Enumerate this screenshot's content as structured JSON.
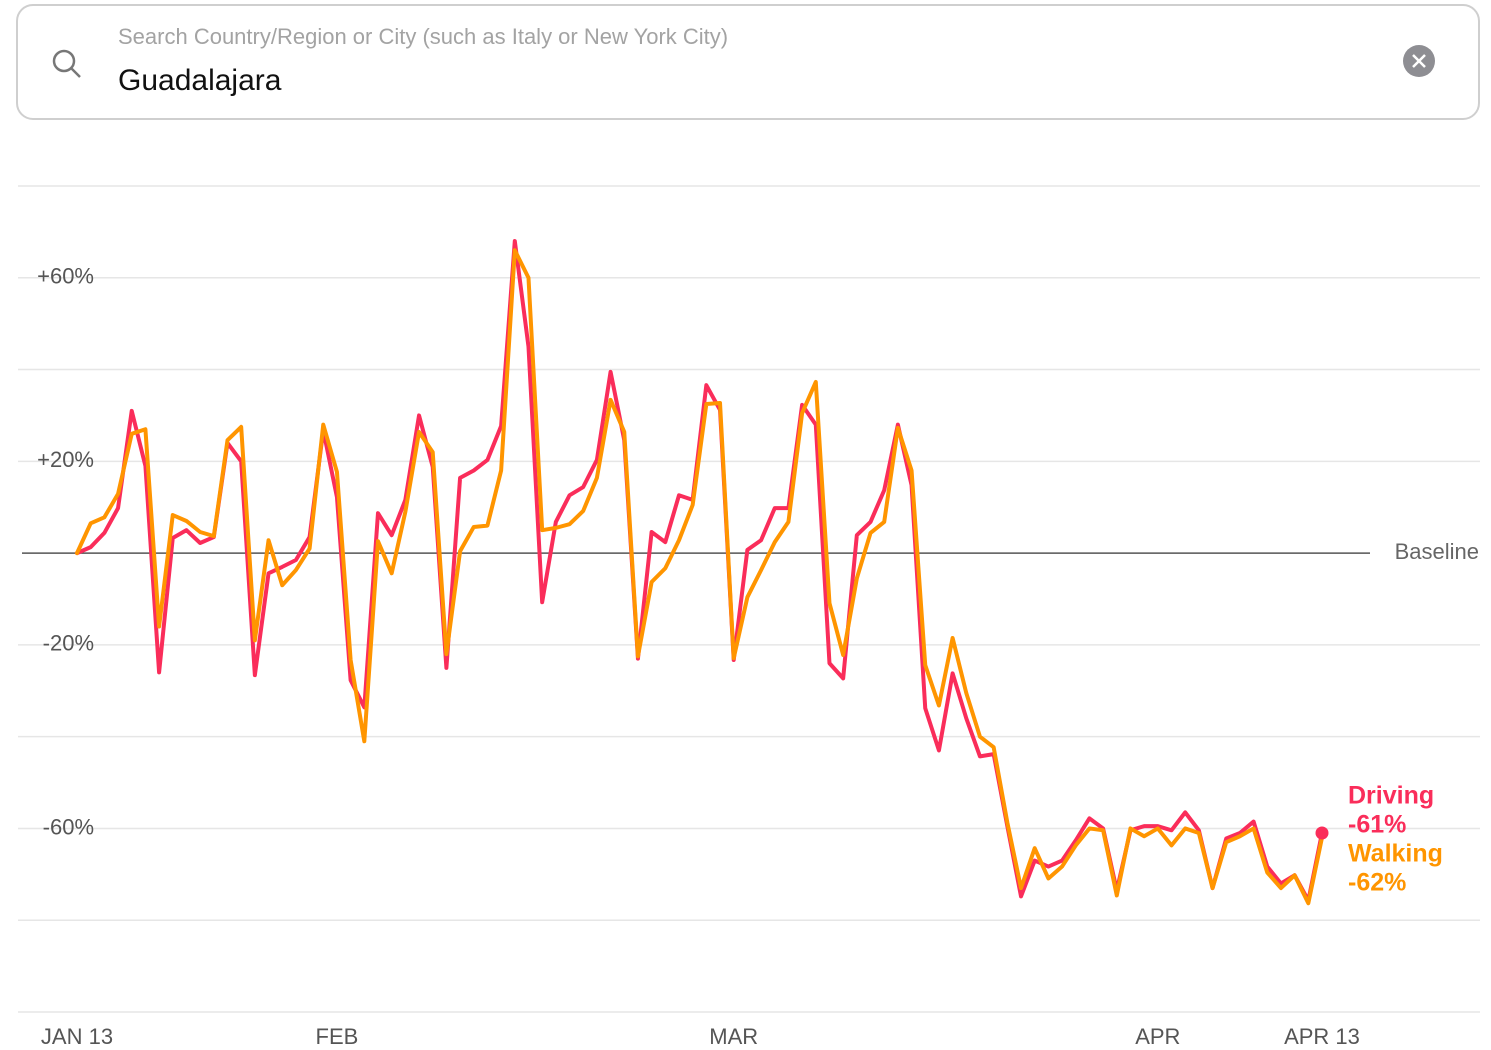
{
  "search": {
    "placeholder": "Search Country/Region or City (such as Italy or New York City)",
    "value": "Guadalajara"
  },
  "chart_data": {
    "type": "line",
    "x": [
      0,
      1,
      2,
      3,
      4,
      5,
      6,
      7,
      8,
      9,
      10,
      11,
      12,
      13,
      14,
      15,
      16,
      17,
      18,
      19,
      20,
      21,
      22,
      23,
      24,
      25,
      26,
      27,
      28,
      29,
      30,
      31,
      32,
      33,
      34,
      35,
      36,
      37,
      38,
      39,
      40,
      41,
      42,
      43,
      44,
      45,
      46,
      47,
      48,
      49,
      50,
      51,
      52,
      53,
      54,
      55,
      56,
      57,
      58,
      59,
      60,
      61,
      62,
      63,
      64,
      65,
      66,
      67,
      68,
      69,
      70,
      71,
      72,
      73,
      74,
      75,
      76,
      77,
      78,
      79,
      80,
      81,
      82,
      83,
      84,
      85,
      86,
      87,
      88,
      89,
      90,
      91
    ],
    "xlim": [
      0,
      91
    ],
    "xticks": [
      {
        "value": 0,
        "label": "JAN 13"
      },
      {
        "value": 19,
        "label": "FEB"
      },
      {
        "value": 48,
        "label": "MAR"
      },
      {
        "value": 79,
        "label": "APR"
      },
      {
        "value": 91,
        "label": "APR 13"
      }
    ],
    "ylim": [
      -100,
      80
    ],
    "yticks": [
      {
        "value": 60,
        "label": "+60%"
      },
      {
        "value": 20,
        "label": "+20%"
      },
      {
        "value": -20,
        "label": "-20%"
      },
      {
        "value": -60,
        "label": "-60%"
      }
    ],
    "minor_yticks": [
      80,
      40,
      -40,
      -80,
      -100
    ],
    "baseline": {
      "value": 0,
      "label": "Baseline"
    },
    "grid": true,
    "series": [
      {
        "name": "Driving",
        "color": "#fa2d5a",
        "values": [
          0,
          1.3,
          4.4,
          9.8,
          31,
          19,
          -26,
          3.3,
          5,
          2.2,
          3.5,
          24,
          20,
          -26.6,
          -4.4,
          -3,
          -1.5,
          3.5,
          26.8,
          12.2,
          -27.7,
          -33.6,
          8.7,
          3.9,
          11.6,
          30,
          18.8,
          -25,
          16.4,
          18,
          20.3,
          27.7,
          68,
          45,
          -10.7,
          6.8,
          12.6,
          14.4,
          20.3,
          39.5,
          24.6,
          -23,
          4.6,
          2.4,
          12.6,
          11.6,
          36.6,
          31.2,
          -23.3,
          0.7,
          2.8,
          9.8,
          9.8,
          32.3,
          28,
          -24,
          -27.3,
          3.9,
          6.8,
          13.7,
          28,
          14.8,
          -33.8,
          -43,
          -26.2,
          -36,
          -44.3,
          -43.8,
          -59.5,
          -74.8,
          -67,
          -68.3,
          -67,
          -62.6,
          -57.8,
          -60,
          -73.5,
          -60.4,
          -59.5,
          -59.5,
          -60.4,
          -56.5,
          -60.4,
          -73,
          -62.2,
          -61,
          -58.5,
          -68.3,
          -72,
          -70.2,
          -75.7,
          -61
        ],
        "value_labels": [
          null,
          null,
          null,
          null,
          null,
          null,
          null,
          null,
          null,
          null,
          null,
          null,
          null,
          null,
          null,
          null,
          null,
          null,
          null,
          null,
          null,
          null,
          null,
          null,
          null,
          null,
          null,
          null,
          null,
          null,
          null,
          null,
          null,
          null,
          null,
          null,
          null,
          null,
          null,
          null,
          null,
          null,
          null,
          null,
          null,
          null,
          null,
          null,
          null,
          null,
          null,
          null,
          null,
          null,
          null,
          null,
          null,
          null,
          null,
          null,
          null,
          null,
          null,
          null,
          null,
          null,
          null,
          null,
          null,
          null,
          null,
          null,
          null,
          null,
          null,
          null,
          null,
          null,
          null,
          null,
          null,
          null,
          null,
          null,
          null,
          null,
          null,
          null,
          null,
          null,
          null,
          "-61%"
        ]
      },
      {
        "name": "Walking",
        "color": "#ff9500",
        "values": [
          0,
          6.5,
          7.8,
          12.9,
          26,
          27,
          -16,
          8.3,
          7,
          4.6,
          3.7,
          24.6,
          27.5,
          -19,
          2.8,
          -7,
          -3.7,
          1,
          28,
          17.7,
          -23.3,
          -41,
          2.6,
          -4.4,
          9,
          26.4,
          22,
          -22,
          0.4,
          5.7,
          6,
          18,
          66,
          60,
          5,
          5.5,
          6.3,
          9.2,
          16.4,
          33.4,
          26.4,
          -22.5,
          -6.3,
          -3.3,
          2.8,
          10.5,
          32.5,
          32.7,
          -22.9,
          -9.6,
          -3.7,
          2.4,
          6.8,
          30.5,
          37.3,
          -10.9,
          -22.2,
          -5.5,
          4.4,
          6.8,
          27.3,
          18,
          -24.4,
          -33.2,
          -18.5,
          -30.5,
          -40,
          -42.3,
          -58.7,
          -73,
          -64.3,
          -70.9,
          -68.3,
          -63.7,
          -60,
          -60.4,
          -74.6,
          -60,
          -61.7,
          -60,
          -63.7,
          -60,
          -61,
          -73,
          -63,
          -61.7,
          -60,
          -69.6,
          -73,
          -70.2,
          -76.3,
          -62
        ],
        "value_labels": [
          null,
          null,
          null,
          null,
          null,
          null,
          null,
          null,
          null,
          null,
          null,
          null,
          null,
          null,
          null,
          null,
          null,
          null,
          null,
          null,
          null,
          null,
          null,
          null,
          null,
          null,
          null,
          null,
          null,
          null,
          null,
          null,
          null,
          null,
          null,
          null,
          null,
          null,
          null,
          null,
          null,
          null,
          null,
          null,
          null,
          null,
          null,
          null,
          null,
          null,
          null,
          null,
          null,
          null,
          null,
          null,
          null,
          null,
          null,
          null,
          null,
          null,
          null,
          null,
          null,
          null,
          null,
          null,
          null,
          null,
          null,
          null,
          null,
          null,
          null,
          null,
          null,
          null,
          null,
          null,
          null,
          null,
          null,
          null,
          null,
          null,
          null,
          null,
          null,
          null,
          null,
          "-62%"
        ]
      }
    ]
  }
}
